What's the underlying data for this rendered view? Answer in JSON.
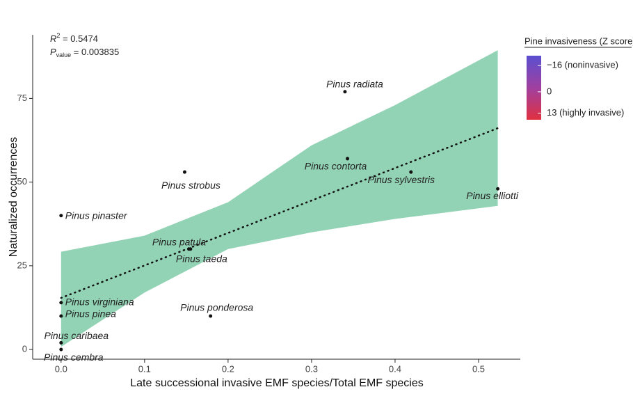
{
  "chart_data": {
    "type": "scatter",
    "x_label": "Late successional invasive EMF species/Total EMF species",
    "y_label": "Naturalized occurrences",
    "xlim": [
      -0.034,
      0.55
    ],
    "ylim": [
      -2.9,
      94
    ],
    "xticks": [
      {
        "value": 0,
        "label": "0.0"
      },
      0.1,
      0.2,
      0.3,
      0.4,
      0.5
    ],
    "yticks": [
      0,
      25,
      50,
      75
    ],
    "annotations": [
      {
        "symbol": "R",
        "sup": "2",
        "text": " = 0.5474"
      },
      {
        "symbol": "P",
        "sub": "value",
        "text": " = 0.003835"
      }
    ],
    "points": [
      {
        "name": "Pinus radiata",
        "x": 0.34,
        "y": 77,
        "color": "#c0282e"
      },
      {
        "name": "Pinus contorta",
        "x": 0.343,
        "y": 57,
        "color": "#c0282e"
      },
      {
        "name": "Pinus sylvestris",
        "x": 0.419,
        "y": 53,
        "color": "#a0285a"
      },
      {
        "name": "Pinus elliotti",
        "x": 0.523,
        "y": 48,
        "color": "#6a2a8a"
      },
      {
        "name": "Pinus strobus",
        "x": 0.148,
        "y": 53,
        "color": "#6a2a8a"
      },
      {
        "name": "Pinus pinaster",
        "x": 0,
        "y": 40,
        "color": "#a02a5a"
      },
      {
        "name": "Pinus patula",
        "x": 0.153,
        "y": 30,
        "color": "#7a2a80"
      },
      {
        "name": "Pinus taeda",
        "x": 0.155,
        "y": 30,
        "color": "#5a30a0"
      },
      {
        "name": "Pinus ponderosa",
        "x": 0.179,
        "y": 10,
        "color": "#3a30b0"
      },
      {
        "name": "Pinus virginiana",
        "x": 0,
        "y": 14,
        "color": "#c0282e"
      },
      {
        "name": "Pinus pinea",
        "x": 0,
        "y": 10,
        "color": "#2a30c8"
      },
      {
        "name": "Pinus caribaea",
        "x": 0,
        "y": 2,
        "color": "#5a30a0"
      },
      {
        "name": "Pinus cembra",
        "x": 0,
        "y": 0,
        "color": "#4a30b0"
      }
    ],
    "fit": {
      "x": [
        0,
        0.1,
        0.2,
        0.3,
        0.4,
        0.523
      ],
      "y": [
        15.4,
        25.1,
        34.8,
        44.5,
        54.2,
        66.1
      ],
      "upper": [
        29.2,
        34,
        44,
        61,
        73,
        89.4
      ],
      "lower": [
        0.8,
        17,
        30,
        35,
        39,
        42.9
      ],
      "band_color": "#93d3b5",
      "line_color": "#111111"
    },
    "colorbar": {
      "title": "Pine invasiveness (Z score)",
      "lim": [
        -22,
        17
      ],
      "colors": [
        "#5a4fd0",
        "#a040a0",
        "#e03040"
      ],
      "ticks": [
        {
          "value": -16,
          "label": "−16 (noninvasive)"
        },
        0,
        {
          "value": 13,
          "label": "13 (highly invasive)"
        }
      ]
    }
  }
}
